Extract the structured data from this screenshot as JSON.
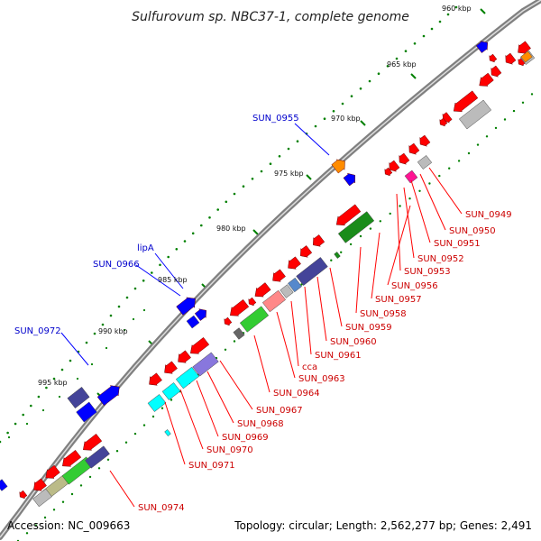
{
  "title": "Sulfurovum sp. NBC37-1, complete genome",
  "kbp_labels": [
    "960 kbp",
    "965 kbp",
    "970 kbp",
    "975 kbp",
    "980 kbp",
    "985 kbp",
    "990 kbp",
    "995 kbp"
  ],
  "reverse_gene_labels": [
    "SUN_0949",
    "SUN_0950",
    "SUN_0951",
    "SUN_0952",
    "SUN_0953",
    "SUN_0956",
    "SUN_0957",
    "SUN_0958",
    "SUN_0959",
    "SUN_0960",
    "SUN_0961",
    "cca",
    "SUN_0963",
    "SUN_0964",
    "SUN_0967",
    "SUN_0968",
    "SUN_0969",
    "SUN_0970",
    "SUN_0971",
    "SUN_0974"
  ],
  "forward_gene_labels": [
    "SUN_0955",
    "lipA",
    "SUN_0966",
    "SUN_0972"
  ],
  "footer": {
    "accession_label": "Accession:",
    "accession": "NC_009663",
    "topology_label": "Topology:",
    "topology": "circular",
    "length_label": "Length:",
    "length": "2,562,277 bp",
    "genes_label": "Genes:",
    "genes": "2,491"
  },
  "colors": {
    "backbone": "#808080",
    "reverse_cds": "#ff0000",
    "forward_cds": "#0000ff",
    "reverse_label": "#cc0000",
    "forward_label": "#0000cc",
    "tick": "#008000",
    "cog_green": "#33cc33",
    "cog_dark_green": "#1a8c1a",
    "cog_purple": "#444499",
    "cog_lavender": "#8877dd",
    "cog_cyan": "#00ffff",
    "cog_pink": "#ff8888",
    "cog_grey": "#bbbbbb",
    "cog_olive": "#bbbb88",
    "cog_orange": "#ff8c00",
    "cog_magenta": "#ff1493"
  }
}
